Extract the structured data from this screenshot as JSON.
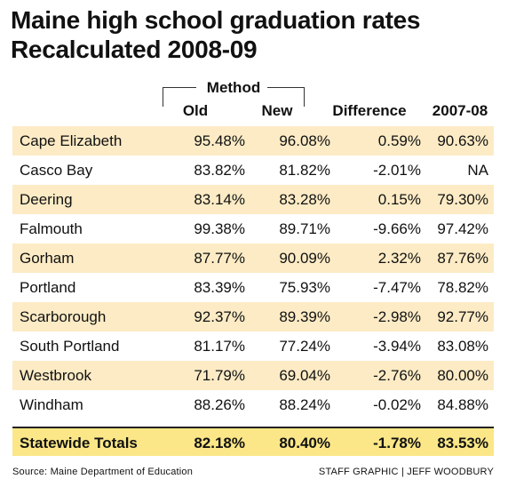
{
  "title": {
    "line1": "Maine high school graduation rates",
    "line2": "Recalculated 2008-09"
  },
  "headers": {
    "method": "Method",
    "old": "Old",
    "new": "New",
    "difference": "Difference",
    "prev": "2007-08"
  },
  "rows": [
    {
      "name": "Cape Elizabeth",
      "old": "95.48%",
      "new": "96.08%",
      "diff": "0.59%",
      "prev": "90.63%"
    },
    {
      "name": "Casco Bay",
      "old": "83.82%",
      "new": "81.82%",
      "diff": "-2.01%",
      "prev": "NA"
    },
    {
      "name": "Deering",
      "old": "83.14%",
      "new": "83.28%",
      "diff": "0.15%",
      "prev": "79.30%"
    },
    {
      "name": "Falmouth",
      "old": "99.38%",
      "new": "89.71%",
      "diff": "-9.66%",
      "prev": "97.42%"
    },
    {
      "name": "Gorham",
      "old": "87.77%",
      "new": "90.09%",
      "diff": "2.32%",
      "prev": "87.76%"
    },
    {
      "name": "Portland",
      "old": "83.39%",
      "new": "75.93%",
      "diff": "-7.47%",
      "prev": "78.82%"
    },
    {
      "name": "Scarborough",
      "old": "92.37%",
      "new": "89.39%",
      "diff": "-2.98%",
      "prev": "92.77%"
    },
    {
      "name": "South Portland",
      "old": "81.17%",
      "new": "77.24%",
      "diff": "-3.94%",
      "prev": "83.08%"
    },
    {
      "name": "Westbrook",
      "old": "71.79%",
      "new": "69.04%",
      "diff": "-2.76%",
      "prev": "80.00%"
    },
    {
      "name": "Windham",
      "old": "88.26%",
      "new": "88.24%",
      "diff": "-0.02%",
      "prev": "84.88%"
    }
  ],
  "total": {
    "name": "Statewide Totals",
    "old": "82.18%",
    "new": "80.40%",
    "diff": "-1.78%",
    "prev": "83.53%"
  },
  "footer": {
    "source": "Source: Maine Department of Education",
    "credit": "STAFF GRAPHIC | JEFF WOODBURY"
  },
  "colors": {
    "shade_row": "#fcebc5",
    "total_row": "#fbe787"
  },
  "chart_data": {
    "type": "table",
    "title": "Maine high school graduation rates",
    "subtitle": "Recalculated 2008-09",
    "columns": [
      "Old",
      "New",
      "Difference",
      "2007-08"
    ],
    "column_group": {
      "label": "Method",
      "columns": [
        "Old",
        "New"
      ]
    },
    "rows": [
      {
        "label": "Cape Elizabeth",
        "values": [
          95.48,
          96.08,
          0.59,
          90.63
        ]
      },
      {
        "label": "Casco Bay",
        "values": [
          83.82,
          81.82,
          -2.01,
          null
        ]
      },
      {
        "label": "Deering",
        "values": [
          83.14,
          83.28,
          0.15,
          79.3
        ]
      },
      {
        "label": "Falmouth",
        "values": [
          99.38,
          89.71,
          -9.66,
          97.42
        ]
      },
      {
        "label": "Gorham",
        "values": [
          87.77,
          90.09,
          2.32,
          87.76
        ]
      },
      {
        "label": "Portland",
        "values": [
          83.39,
          75.93,
          -7.47,
          78.82
        ]
      },
      {
        "label": "Scarborough",
        "values": [
          92.37,
          89.39,
          -2.98,
          92.77
        ]
      },
      {
        "label": "South Portland",
        "values": [
          81.17,
          77.24,
          -3.94,
          83.08
        ]
      },
      {
        "label": "Westbrook",
        "values": [
          71.79,
          69.04,
          -2.76,
          80.0
        ]
      },
      {
        "label": "Windham",
        "values": [
          88.26,
          88.24,
          -0.02,
          84.88
        ]
      },
      {
        "label": "Statewide Totals",
        "values": [
          82.18,
          80.4,
          -1.78,
          83.53
        ]
      }
    ]
  }
}
